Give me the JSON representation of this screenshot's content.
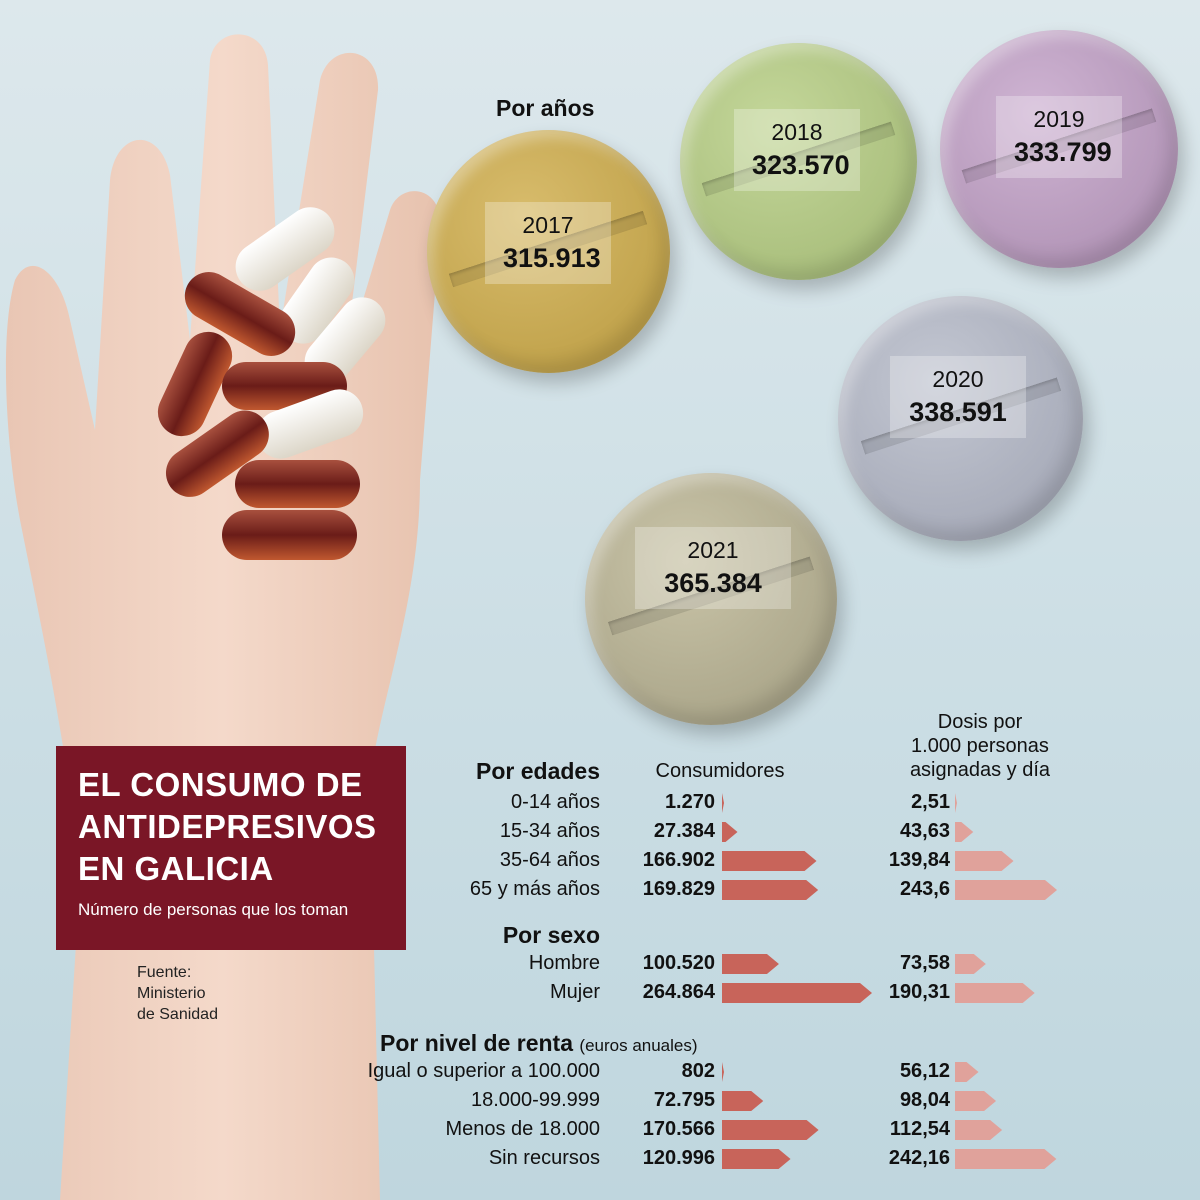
{
  "title": {
    "line1": "EL CONSUMO DE",
    "line2": "ANTIDEPRESIVOS",
    "line3": "EN GALICIA",
    "subtitle": "Número de personas que los toman"
  },
  "source": {
    "line1": "Fuente:",
    "line2": "Ministerio",
    "line3": "de Sanidad"
  },
  "years_heading": "Por años",
  "years": [
    {
      "year": "2017",
      "value": "315.913",
      "color": "#c9ac5c"
    },
    {
      "year": "2018",
      "value": "323.570",
      "color": "#b6c98a"
    },
    {
      "year": "2019",
      "value": "333.799",
      "color": "#c0a4c4"
    },
    {
      "year": "2020",
      "value": "338.591",
      "color": "#b3b7c4"
    },
    {
      "year": "2021",
      "value": "365.384",
      "color": "#bab59a"
    }
  ],
  "columns": {
    "consumers": "Consumidores",
    "dose_line1": "Dosis por",
    "dose_line2": "1.000 personas",
    "dose_line3": "asignadas y día"
  },
  "colors": {
    "consumer_bar": "#c8645a",
    "dose_bar": "#e0a29b",
    "title_bg": "#7a1626"
  },
  "sections": {
    "age": "Por edades",
    "sex": "Por sexo",
    "income": "Por nivel de renta",
    "income_note": "(euros anuales)"
  },
  "chart_data": {
    "type": "bar",
    "series": [
      {
        "name": "Consumidores",
        "values": [
          1270,
          27384,
          166902,
          169829,
          100520,
          264864,
          802,
          72795,
          170566,
          120996
        ]
      },
      {
        "name": "Dosis por 1.000 personas asignadas y día",
        "values": [
          2.51,
          43.63,
          139.84,
          243.6,
          73.58,
          190.31,
          56.12,
          98.04,
          112.54,
          242.16
        ]
      }
    ],
    "categories": [
      "0-14 años",
      "15-34 años",
      "35-64 años",
      "65 y más años",
      "Hombre",
      "Mujer",
      "Igual o superior a 100.000",
      "18.000-99.999",
      "Menos de 18.000",
      "Sin recursos"
    ],
    "display_consumers": [
      "1.270",
      "27.384",
      "166.902",
      "169.829",
      "100.520",
      "264.864",
      "802",
      "72.795",
      "170.566",
      "120.996"
    ],
    "display_doses": [
      "2,51",
      "43,63",
      "139,84",
      "243,6",
      "73,58",
      "190,31",
      "56,12",
      "98,04",
      "112,54",
      "242,16"
    ]
  }
}
